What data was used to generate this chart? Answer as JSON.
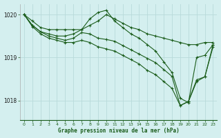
{
  "title": "Graphe pression niveau de la mer (hPa)",
  "background_color": "#d4efef",
  "grid_color": "#b8dada",
  "line_color": "#1a5c1a",
  "xlim": [
    -0.5,
    23.5
  ],
  "ylim": [
    1017.55,
    1020.25
  ],
  "yticks": [
    1018,
    1019,
    1020
  ],
  "xticks": [
    0,
    1,
    2,
    3,
    4,
    5,
    6,
    7,
    8,
    9,
    10,
    11,
    12,
    13,
    14,
    15,
    16,
    17,
    18,
    19,
    20,
    21,
    22,
    23
  ],
  "series": [
    [
      1020.0,
      1019.85,
      1019.7,
      1019.65,
      1019.65,
      1019.65,
      1019.65,
      1019.65,
      1019.75,
      1019.85,
      1020.0,
      1019.9,
      1019.8,
      1019.7,
      1019.65,
      1019.55,
      1019.5,
      1019.45,
      1019.4,
      1019.35,
      1019.3,
      1019.3,
      1019.35,
      1019.35
    ],
    [
      1020.0,
      1019.75,
      1019.6,
      1019.55,
      1019.5,
      1019.5,
      1019.55,
      1019.65,
      1019.9,
      1020.05,
      1020.1,
      1019.85,
      1019.7,
      1019.55,
      1019.45,
      1019.3,
      1019.15,
      1018.9,
      1018.65,
      1018.05,
      1017.95,
      1019.0,
      1019.05,
      1019.3
    ],
    [
      1020.0,
      1019.75,
      1019.6,
      1019.5,
      1019.45,
      1019.4,
      1019.45,
      1019.58,
      1019.55,
      1019.45,
      1019.42,
      1019.38,
      1019.28,
      1019.18,
      1019.08,
      1018.98,
      1018.88,
      1018.72,
      1018.56,
      1017.88,
      1017.98,
      1018.48,
      1018.55,
      1019.3
    ],
    [
      1020.0,
      1019.72,
      1019.55,
      1019.45,
      1019.4,
      1019.35,
      1019.35,
      1019.4,
      1019.35,
      1019.25,
      1019.2,
      1019.15,
      1019.05,
      1018.95,
      1018.85,
      1018.7,
      1018.6,
      1018.44,
      1018.28,
      1017.88,
      1017.97,
      1018.44,
      1018.55,
      1019.25
    ]
  ]
}
